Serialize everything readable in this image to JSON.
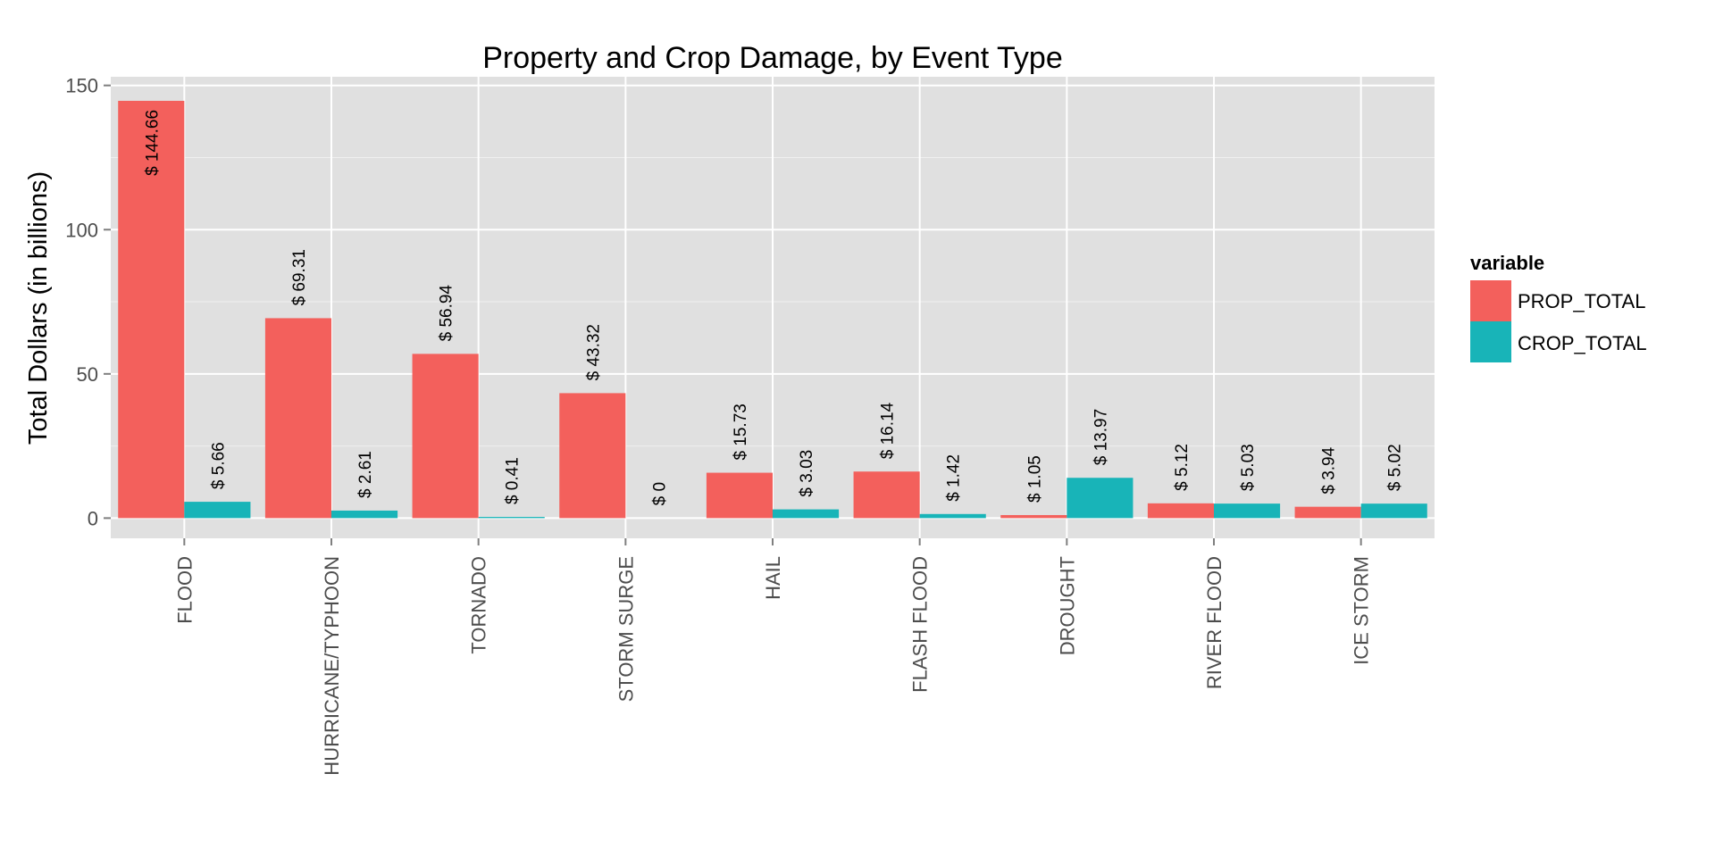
{
  "chart_data": {
    "type": "bar",
    "title": "Property and Crop Damage, by Event Type",
    "xlabel": "",
    "ylabel": "Total Dollars (in billions)",
    "ylim": [
      -7,
      153
    ],
    "yticks": [
      0,
      50,
      100,
      150
    ],
    "grid": true,
    "legend_position": "right",
    "legend_title": "variable",
    "categories": [
      "FLOOD",
      "HURRICANE/TYPHOON",
      "TORNADO",
      "STORM SURGE",
      "HAIL",
      "FLASH FLOOD",
      "DROUGHT",
      "RIVER FLOOD",
      "ICE STORM"
    ],
    "series": [
      {
        "name": "PROP_TOTAL",
        "color": "#F3605C",
        "values": [
          144.66,
          69.31,
          56.94,
          43.32,
          15.73,
          16.14,
          1.05,
          5.12,
          3.94
        ],
        "labels": [
          "$ 144.66",
          "$ 69.31",
          "$ 56.94",
          "$ 43.32",
          "$ 15.73",
          "$ 16.14",
          "$ 1.05",
          "$ 5.12",
          "$ 3.94"
        ]
      },
      {
        "name": "CROP_TOTAL",
        "color": "#18B4B8",
        "values": [
          5.66,
          2.61,
          0.41,
          0,
          3.03,
          1.42,
          13.97,
          5.03,
          5.02
        ],
        "labels": [
          "$ 5.66",
          "$ 2.61",
          "$ 0.41",
          "$ 0",
          "$ 3.03",
          "$ 1.42",
          "$ 13.97",
          "$ 5.03",
          "$ 5.02"
        ]
      }
    ]
  }
}
